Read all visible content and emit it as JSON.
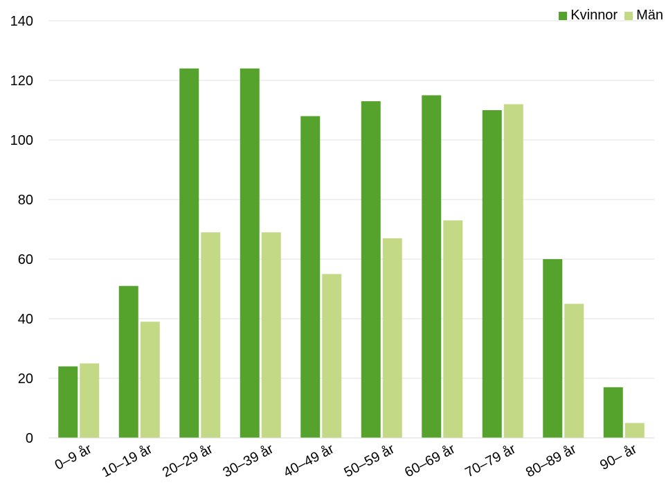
{
  "chart_data": {
    "type": "bar",
    "title": "",
    "xlabel": "",
    "ylabel": "",
    "ylim": [
      0,
      140
    ],
    "yticks": [
      0,
      20,
      40,
      60,
      80,
      100,
      120,
      140
    ],
    "grid": true,
    "legend_position": "top-right",
    "categories": [
      "0–9 år",
      "10–19 år",
      "20–29 år",
      "30–39 år",
      "40–49 år",
      "50–59 år",
      "60–69 år",
      "70–79 år",
      "80–89 år",
      "90– år"
    ],
    "series": [
      {
        "name": "Kvinnor",
        "color": "#55a22c",
        "values": [
          24,
          51,
          124,
          124,
          108,
          113,
          115,
          110,
          60,
          17
        ]
      },
      {
        "name": "Män",
        "color": "#c3d986",
        "values": [
          25,
          39,
          69,
          69,
          55,
          67,
          73,
          112,
          45,
          5
        ]
      }
    ]
  }
}
